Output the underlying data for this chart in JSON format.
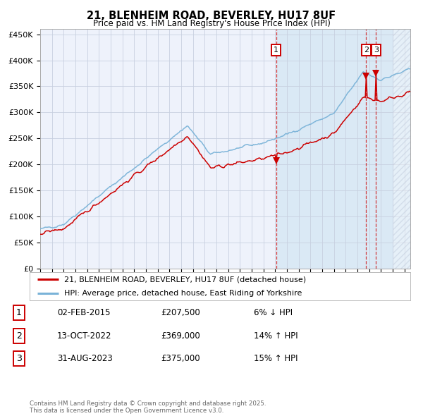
{
  "title": "21, BLENHEIM ROAD, BEVERLEY, HU17 8UF",
  "subtitle": "Price paid vs. HM Land Registry's House Price Index (HPI)",
  "legend_line1": "21, BLENHEIM ROAD, BEVERLEY, HU17 8UF (detached house)",
  "legend_line2": "HPI: Average price, detached house, East Riding of Yorkshire",
  "sale1_date": "02-FEB-2015",
  "sale1_price": 207500,
  "sale1_hpi": "6% ↓ HPI",
  "sale2_date": "13-OCT-2022",
  "sale2_price": 369000,
  "sale2_hpi": "14% ↑ HPI",
  "sale3_date": "31-AUG-2023",
  "sale3_price": 375000,
  "sale3_hpi": "15% ↑ HPI",
  "copyright": "Contains HM Land Registry data © Crown copyright and database right 2025.\nThis data is licensed under the Open Government Licence v3.0.",
  "hpi_color": "#7ab3d8",
  "property_color": "#cc0000",
  "background_color": "#ffffff",
  "plot_bg_color": "#eef2fb",
  "grid_color": "#c8d0e0",
  "shade_color": "#d8e8f5",
  "xmin": 1995,
  "xmax": 2026.5,
  "ymin": 0,
  "ymax": 460000
}
